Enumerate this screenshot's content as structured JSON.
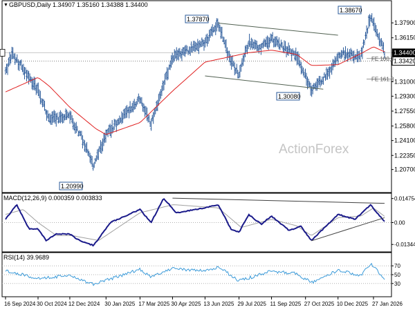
{
  "header": {
    "symbol_label": "GBPUSD,Daily",
    "ohlc": "1.34907 1.35160 1.34388 1.34400"
  },
  "watermark": "ActionForex",
  "colors": {
    "bar": "#2a5a9a",
    "ma": "#e02020",
    "channel": "#506050",
    "macd": "#1a1a8a",
    "signal": "#a0a0a0",
    "rsi": "#3a9ad9",
    "grid": "#b0b0b0",
    "dotted_level": "#808080"
  },
  "chart_data": [
    {
      "type": "candlestick",
      "title": "GBPUSD,Daily",
      "ylim": [
        1.18,
        1.405
      ],
      "y_ticks": [
        "1.37900",
        "1.36150",
        "1.34400",
        "1.33420",
        "1.31000",
        "1.29300",
        "1.27550",
        "1.25800",
        "1.24100",
        "1.22350",
        "1.20700"
      ],
      "price_path": [
        [
          "16 Sep 2024",
          1.32
        ],
        [
          "25 Sep 2024",
          1.343
        ],
        [
          "30 Oct 2024",
          1.3
        ],
        [
          "14 Nov 2024",
          1.266
        ],
        [
          "12 Dec 2024",
          1.27
        ],
        [
          "2 Jan 2025",
          1.236
        ],
        [
          "13 Jan 2025",
          1.21
        ],
        [
          "30 Jan 2025",
          1.248
        ],
        [
          "17 Mar 2025",
          1.29
        ],
        [
          "1 Apr 2025",
          1.26
        ],
        [
          "30 Apr 2025",
          1.338
        ],
        [
          "13 Jun 2025",
          1.356
        ],
        [
          "1 Jul 2025",
          1.3787
        ],
        [
          "15 Jul 2025",
          1.34
        ],
        [
          "29 Jul 2025",
          1.318
        ],
        [
          "11 Aug 2025",
          1.356
        ],
        [
          "28 Aug 2025",
          1.35
        ],
        [
          "11 Sep 2025",
          1.36
        ],
        [
          "15 Oct 2025",
          1.34
        ],
        [
          "4 Nov 2025",
          1.3008
        ],
        [
          "25 Nov 2025",
          1.318
        ],
        [
          "15 Dec 2025",
          1.344
        ],
        [
          "10 Jan 2026",
          1.34
        ],
        [
          "23 Jan 2026",
          1.3867
        ],
        [
          "11 Feb 2026",
          1.344
        ]
      ],
      "moving_average_path": [
        [
          "16 Sep 2024",
          1.298
        ],
        [
          "30 Oct 2024",
          1.315
        ],
        [
          "14 Nov 2024",
          1.305
        ],
        [
          "12 Dec 2024",
          1.28
        ],
        [
          "16 Jan 2025",
          1.255
        ],
        [
          "30 Jan 2025",
          1.248
        ],
        [
          "17 Mar 2025",
          1.262
        ],
        [
          "30 Apr 2025",
          1.299
        ],
        [
          "13 Jun 2025",
          1.333
        ],
        [
          "11 Aug 2025",
          1.344
        ],
        [
          "11 Sep 2025",
          1.347
        ],
        [
          "15 Oct 2025",
          1.342
        ],
        [
          "4 Nov 2025",
          1.329
        ],
        [
          "10 Dec 2025",
          1.33
        ],
        [
          "10 Jan 2026",
          1.343
        ],
        [
          "27 Jan 2026",
          1.351
        ],
        [
          "11 Feb 2026",
          1.345
        ]
      ],
      "price_labels": [
        {
          "text": "1.37870",
          "date": "1 Jul 2025",
          "price": 1.3787
        },
        {
          "text": "1.38670",
          "date": "23 Jan 2026",
          "price": 1.3867
        },
        {
          "text": "1.30080",
          "date": "4 Nov 2025",
          "price": 1.3008
        },
        {
          "text": "1.20990",
          "date": "13 Jan 2025",
          "price": 1.2099
        }
      ],
      "current_price": {
        "text": "1.34400",
        "value": 1.344
      },
      "level_line": {
        "text": "1.33420",
        "value": 1.3342
      },
      "fib_labels": [
        {
          "text": "FE 100.0",
          "value": 1.3372
        },
        {
          "text": "FE 161.8",
          "value": 1.313
        }
      ],
      "channel_lines": [
        {
          "from": [
            "1 Jul 2025",
            1.3787
          ],
          "to": [
            "10 Dec 2025",
            1.3645
          ]
        },
        {
          "from": [
            "13 Jun 2025",
            1.3168
          ],
          "to": [
            "20 Nov 2025",
            1.3012
          ]
        }
      ]
    },
    {
      "type": "line",
      "title": "MACD(12,26,9) 0.000359 0.003833",
      "ylim": [
        -0.018,
        0.018
      ],
      "y_ticks": [
        "0.014754",
        "0.00",
        "-0.013442"
      ],
      "macd_path": [
        [
          "16 Sep 2024",
          0.002
        ],
        [
          "1 Oct 2024",
          0.011
        ],
        [
          "18 Oct 2024",
          -0.004
        ],
        [
          "30 Oct 2024",
          -0.004
        ],
        [
          "10 Nov 2024",
          -0.011
        ],
        [
          "24 Nov 2024",
          -0.007
        ],
        [
          "12 Dec 2024",
          -0.007
        ],
        [
          "25 Dec 2024",
          -0.011
        ],
        [
          "13 Jan 2025",
          -0.014
        ],
        [
          "5 Feb 2025",
          0.0
        ],
        [
          "17 Mar 2025",
          0.008
        ],
        [
          "1 Apr 2025",
          0.0
        ],
        [
          "18 Apr 2025",
          0.015
        ],
        [
          "5 May 2025",
          0.006
        ],
        [
          "13 Jun 2025",
          0.009
        ],
        [
          "1 Jul 2025",
          0.011
        ],
        [
          "18 Jul 2025",
          -0.004
        ],
        [
          "29 Jul 2025",
          -0.006
        ],
        [
          "11 Aug 2025",
          0.005
        ],
        [
          "28 Aug 2025",
          -0.001
        ],
        [
          "11 Sep 2025",
          0.004
        ],
        [
          "5 Oct 2025",
          -0.005
        ],
        [
          "20 Oct 2025",
          -0.002
        ],
        [
          "4 Nov 2025",
          -0.011
        ],
        [
          "10 Dec 2025",
          0.005
        ],
        [
          "2 Jan 2026",
          0.002
        ],
        [
          "23 Jan 2026",
          0.011
        ],
        [
          "11 Feb 2026",
          0.0004
        ]
      ],
      "signal_path": [
        [
          "16 Sep 2024",
          0.005
        ],
        [
          "10 Oct 2024",
          0.008
        ],
        [
          "30 Oct 2024",
          0.0
        ],
        [
          "24 Nov 2024",
          -0.008
        ],
        [
          "15 Dec 2024",
          -0.008
        ],
        [
          "20 Jan 2025",
          -0.011
        ],
        [
          "17 Mar 2025",
          0.006
        ],
        [
          "1 May 2025",
          0.011
        ],
        [
          "1 Jul 2025",
          0.009
        ],
        [
          "1 Aug 2025",
          -0.003
        ],
        [
          "11 Sep 2025",
          0.002
        ],
        [
          "15 Oct 2025",
          -0.002
        ],
        [
          "4 Nov 2025",
          -0.008
        ],
        [
          "10 Dec 2025",
          0.003
        ],
        [
          "10 Jan 2026",
          0.004
        ],
        [
          "27 Jan 2026",
          0.009
        ],
        [
          "11 Feb 2026",
          0.0038
        ]
      ],
      "trend_lines": [
        {
          "from": [
            "30 Apr 2025",
            0.015
          ],
          "to": [
            "11 Feb 2026",
            0.0118
          ]
        },
        {
          "from": [
            "4 Nov 2025",
            -0.0112
          ],
          "to": [
            "11 Feb 2026",
            0.003
          ]
        }
      ]
    },
    {
      "type": "line",
      "title": "RSI(14) 39.9689",
      "ylim": [
        0,
        100
      ],
      "y_ticks": [
        "70",
        "50",
        "30"
      ],
      "rsi_path": [
        [
          "16 Sep 2024",
          58
        ],
        [
          "30 Oct 2024",
          42
        ],
        [
          "12 Dec 2024",
          48
        ],
        [
          "13 Jan 2025",
          28
        ],
        [
          "17 Mar 2025",
          62
        ],
        [
          "1 Apr 2025",
          44
        ],
        [
          "30 Apr 2025",
          64
        ],
        [
          "13 Jun 2025",
          58
        ],
        [
          "1 Jul 2025",
          68
        ],
        [
          "29 Jul 2025",
          36
        ],
        [
          "11 Sep 2025",
          58
        ],
        [
          "15 Oct 2025",
          52
        ],
        [
          "4 Nov 2025",
          32
        ],
        [
          "10 Dec 2025",
          60
        ],
        [
          "10 Jan 2026",
          48
        ],
        [
          "23 Jan 2026",
          76
        ],
        [
          "11 Feb 2026",
          40
        ]
      ]
    }
  ],
  "x_ticks": [
    "16 Sep 2024",
    "30 Oct 2024",
    "12 Dec 2024",
    "30 Jan 2025",
    "17 Mar 2025",
    "30 Apr 2025",
    "13 Jun 2025",
    "29 Jul 2025",
    "11 Sep 2025",
    "27 Oct 2025",
    "10 Dec 2025",
    "27 Jan 2026"
  ]
}
